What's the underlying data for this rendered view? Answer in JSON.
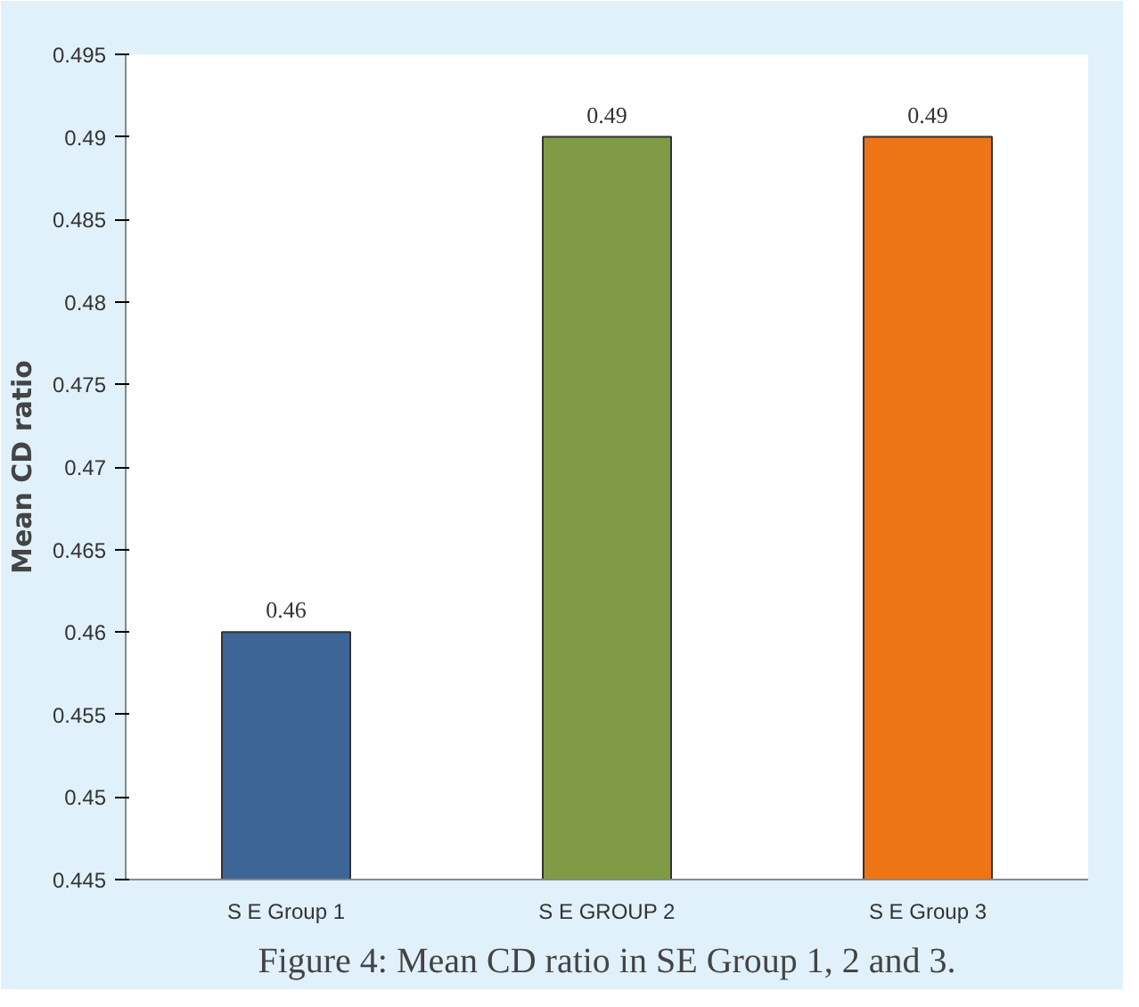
{
  "chart_data": {
    "type": "bar",
    "ylabel": "Mean CD ratio",
    "categories": [
      "S E Group 1",
      "S E GROUP 2",
      "S E Group 3"
    ],
    "values": [
      0.46,
      0.49,
      0.49
    ],
    "colors": [
      "#3d6697",
      "#7f9b45",
      "#ef7414"
    ],
    "ylim": [
      0.445,
      0.495
    ],
    "yticks": [
      0.445,
      0.45,
      0.455,
      0.46,
      0.465,
      0.47,
      0.475,
      0.48,
      0.485,
      0.49,
      0.495
    ],
    "grid": false,
    "data_labels": true,
    "annotations": [
      "Figure 4: Mean CD ratio in SE Group 1, 2 and 3."
    ]
  }
}
